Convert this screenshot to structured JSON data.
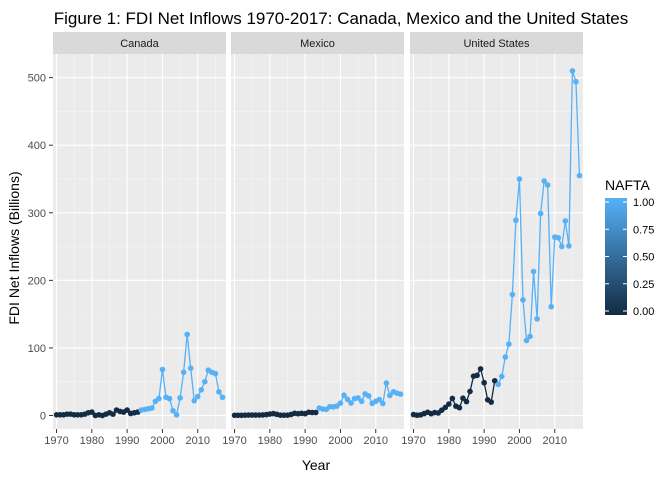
{
  "chart_data": {
    "type": "scatter",
    "title": "Figure 1: FDI Net Inflows 1970-2017: Canada, Mexico and the United States",
    "xlabel": "Year",
    "ylabel": "FDI Net Inflows (Billions)",
    "xlim": [
      1969,
      2018
    ],
    "ylim": [
      -20,
      535
    ],
    "x_ticks": [
      1970,
      1980,
      1990,
      2000,
      2010
    ],
    "x_tick_labels": [
      "1970",
      "1980",
      "1990",
      "2000",
      "2010"
    ],
    "y_ticks": [
      0,
      100,
      200,
      300,
      400,
      500
    ],
    "y_tick_labels": [
      "0",
      "100",
      "200",
      "300",
      "400",
      "500"
    ],
    "grid": true,
    "connect_points": true,
    "legend": {
      "title": "NAFTA",
      "position": "right",
      "labels": [
        "1.00",
        "0.75",
        "0.50",
        "0.25",
        "0.00"
      ],
      "values": [
        1.0,
        0.75,
        0.5,
        0.25,
        0.0
      ],
      "low_color": "#132B43",
      "high_color": "#56B1F7"
    },
    "panels": [
      {
        "name": "Canada",
        "x": [
          1970,
          1971,
          1972,
          1973,
          1974,
          1975,
          1976,
          1977,
          1978,
          1979,
          1980,
          1981,
          1982,
          1983,
          1984,
          1985,
          1986,
          1987,
          1988,
          1989,
          1990,
          1991,
          1992,
          1993,
          1994,
          1995,
          1996,
          1997,
          1998,
          1999,
          2000,
          2001,
          2002,
          2003,
          2004,
          2005,
          2006,
          2007,
          2008,
          2009,
          2010,
          2011,
          2012,
          2013,
          2014,
          2015,
          2016,
          2017
        ],
        "y": [
          1,
          1,
          1,
          2,
          2,
          1,
          1,
          1,
          2,
          4,
          5,
          0,
          1,
          0,
          2,
          4,
          2,
          8,
          6,
          5,
          8,
          3,
          4,
          5,
          8,
          9,
          10,
          11,
          21,
          25,
          68,
          27,
          25,
          7,
          1,
          26,
          64,
          120,
          70,
          22,
          28,
          38,
          50,
          67,
          64,
          62,
          35,
          27
        ],
        "nafta": [
          0,
          0,
          0,
          0,
          0,
          0,
          0,
          0,
          0,
          0,
          0,
          0,
          0,
          0,
          0,
          0,
          0,
          0,
          0,
          0,
          0,
          0,
          0,
          0,
          1,
          1,
          1,
          1,
          1,
          1,
          1,
          1,
          1,
          1,
          1,
          1,
          1,
          1,
          1,
          1,
          1,
          1,
          1,
          1,
          1,
          1,
          1,
          1
        ]
      },
      {
        "name": "Mexico",
        "x": [
          1970,
          1971,
          1972,
          1973,
          1974,
          1975,
          1976,
          1977,
          1978,
          1979,
          1980,
          1981,
          1982,
          1983,
          1984,
          1985,
          1986,
          1987,
          1988,
          1989,
          1990,
          1991,
          1992,
          1993,
          1994,
          1995,
          1996,
          1997,
          1998,
          1999,
          2000,
          2001,
          2002,
          2003,
          2004,
          2005,
          2006,
          2007,
          2008,
          2009,
          2010,
          2011,
          2012,
          2013,
          2014,
          2015,
          2016,
          2017
        ],
        "y": [
          0.3,
          0.3,
          0.3,
          0.5,
          0.7,
          0.6,
          0.6,
          0.6,
          0.8,
          1.3,
          2.1,
          2.8,
          1.7,
          0.5,
          0.4,
          0.5,
          1.5,
          3.2,
          2.6,
          3.2,
          2.6,
          4.8,
          4.4,
          4.4,
          11,
          9.5,
          9.2,
          13,
          12.8,
          13.9,
          18.3,
          30,
          24,
          18.4,
          25,
          26,
          21,
          32,
          29,
          17.9,
          21,
          23.6,
          17.8,
          48,
          29.6,
          35,
          33,
          31.6
        ],
        "nafta": [
          0,
          0,
          0,
          0,
          0,
          0,
          0,
          0,
          0,
          0,
          0,
          0,
          0,
          0,
          0,
          0,
          0,
          0,
          0,
          0,
          0,
          0,
          0,
          0,
          1,
          1,
          1,
          1,
          1,
          1,
          1,
          1,
          1,
          1,
          1,
          1,
          1,
          1,
          1,
          1,
          1,
          1,
          1,
          1,
          1,
          1,
          1,
          1
        ]
      },
      {
        "name": "United States",
        "x": [
          1970,
          1971,
          1972,
          1973,
          1974,
          1975,
          1976,
          1977,
          1978,
          1979,
          1980,
          1981,
          1982,
          1983,
          1984,
          1985,
          1986,
          1987,
          1988,
          1989,
          1990,
          1991,
          1992,
          1993,
          1994,
          1995,
          1996,
          1997,
          1998,
          1999,
          2000,
          2001,
          2002,
          2003,
          2004,
          2005,
          2006,
          2007,
          2008,
          2009,
          2010,
          2011,
          2012,
          2013,
          2014,
          2015,
          2016,
          2017
        ],
        "y": [
          1.3,
          0.4,
          0.9,
          2.8,
          4.8,
          2.6,
          4.3,
          3.7,
          7.9,
          11.9,
          16.9,
          25.2,
          13.8,
          11.5,
          25.6,
          20.5,
          35.6,
          58.2,
          59.4,
          69,
          48.5,
          23.2,
          19.8,
          51.4,
          46.1,
          57.8,
          86.5,
          105.6,
          179,
          289,
          350,
          171,
          111,
          117,
          213,
          143,
          299,
          347,
          341,
          161,
          264,
          263,
          250,
          288,
          251,
          510,
          494,
          355
        ],
        "nafta": [
          0,
          0,
          0,
          0,
          0,
          0,
          0,
          0,
          0,
          0,
          0,
          0,
          0,
          0,
          0,
          0,
          0,
          0,
          0,
          0,
          0,
          0,
          0,
          0,
          1,
          1,
          1,
          1,
          1,
          1,
          1,
          1,
          1,
          1,
          1,
          1,
          1,
          1,
          1,
          1,
          1,
          1,
          1,
          1,
          1,
          1,
          1,
          1
        ]
      }
    ]
  }
}
